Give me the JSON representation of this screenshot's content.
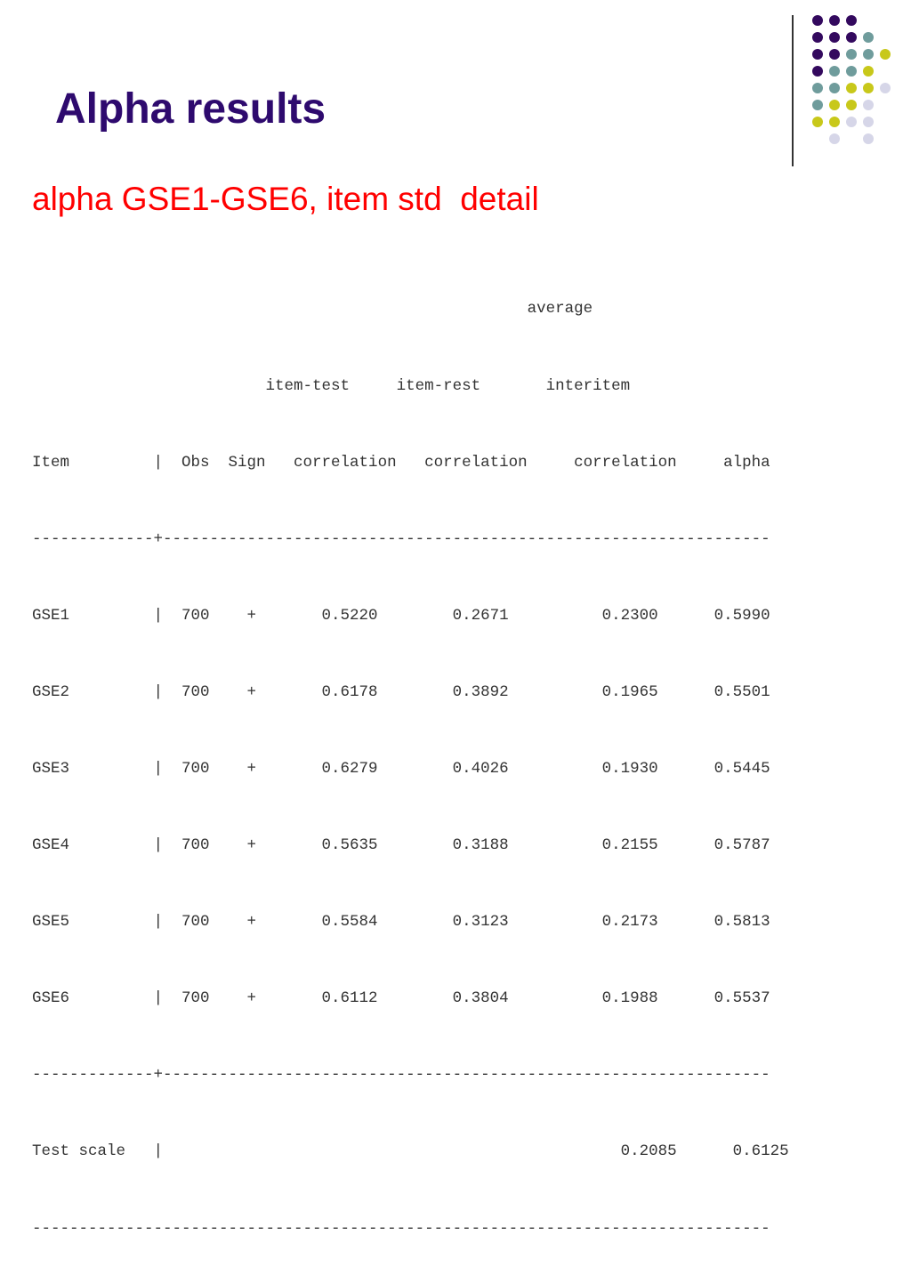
{
  "slide": {
    "title": "Alpha results",
    "subtitle": "alpha GSE1-GSE6, item std  detail",
    "colors": {
      "title": "#2e0a6e",
      "subtitle": "#ff0000",
      "output_text": "#333333",
      "dot_purple": "#33095e",
      "dot_teal": "#6f9c9c",
      "dot_lime": "#c8c81a",
      "dot_lavender": "#d6d6e8"
    }
  },
  "output": {
    "lines": [
      "                                                     average",
      "                         item-test     item-rest       interitem",
      "Item         |  Obs  Sign   correlation   correlation     correlation     alpha",
      "-------------+-----------------------------------------------------------------",
      "GSE1         |  700    +       0.5220        0.2671          0.2300      0.5990",
      "GSE2         |  700    +       0.6178        0.3892          0.1965      0.5501",
      "GSE3         |  700    +       0.6279        0.4026          0.1930      0.5445",
      "GSE4         |  700    +       0.5635        0.3188          0.2155      0.5787",
      "GSE5         |  700    +       0.5584        0.3123          0.2173      0.5813",
      "GSE6         |  700    +       0.6112        0.3804          0.1988      0.5537",
      "-------------+-----------------------------------------------------------------",
      "Test scale   |                                                 0.2085      0.6125",
      "-------------------------------------------------------------------------------"
    ]
  }
}
